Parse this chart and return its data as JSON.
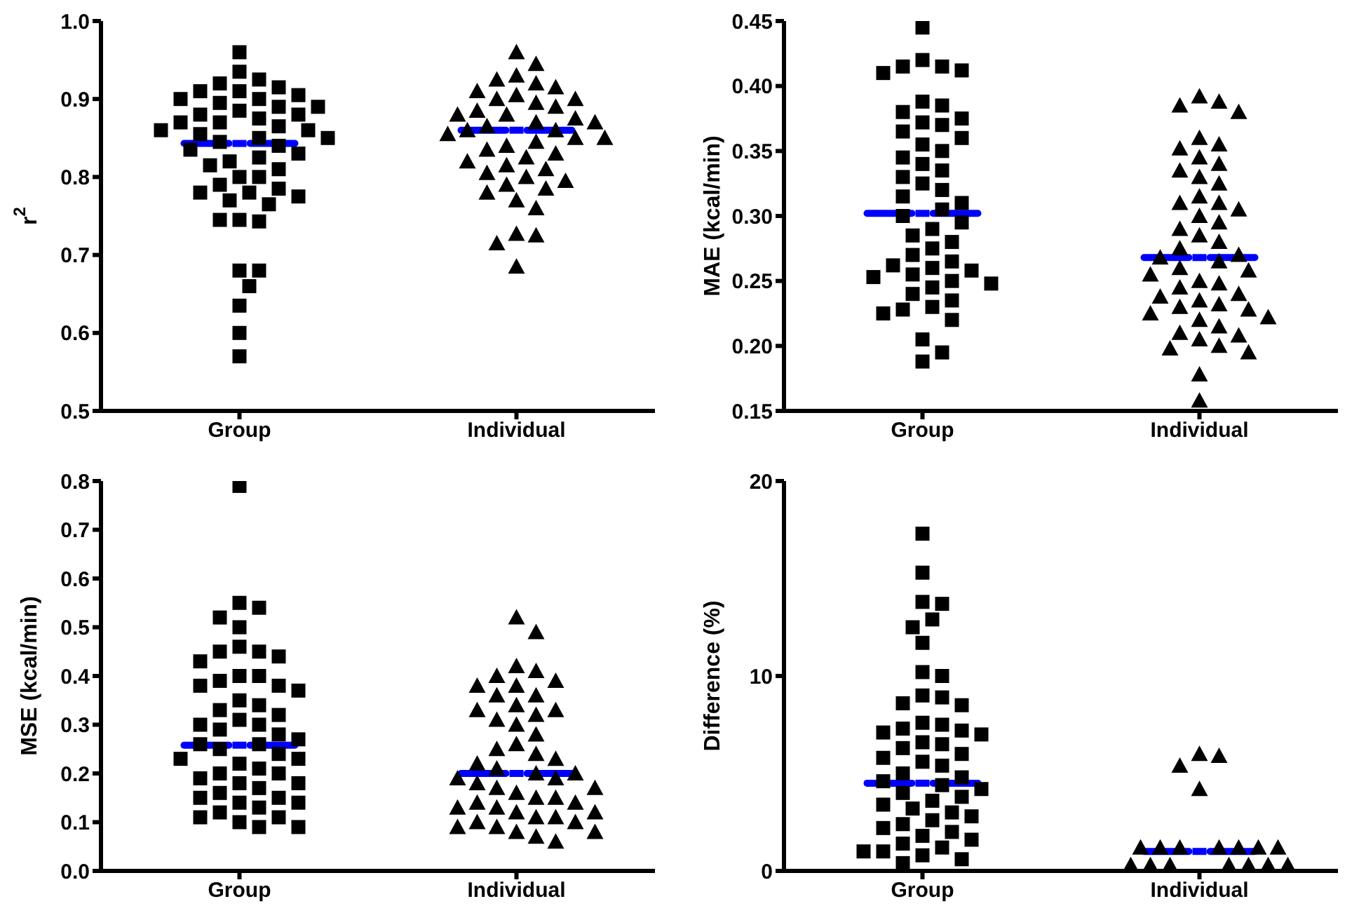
{
  "chart_data": [
    {
      "type": "scatter",
      "ylabel": "r$^{2}$",
      "categories": [
        "Group",
        "Individual"
      ],
      "ylim": [
        0.5,
        1.0
      ],
      "yticks": [
        0.5,
        0.6,
        0.7,
        0.8,
        0.9,
        {
          "value": 1.0,
          "label": "1.0"
        }
      ],
      "grid": false,
      "legend": false,
      "series": [
        {
          "marker": "square",
          "color": "#000000",
          "x": [
            "Group",
            "Group",
            "Group",
            "Group",
            "Group",
            "Group",
            "Group",
            "Group",
            "Group",
            "Group",
            "Group",
            "Group",
            "Group",
            "Group",
            "Group",
            "Group",
            "Group",
            "Group",
            "Group",
            "Group",
            "Group",
            "Group",
            "Group",
            "Group",
            "Group",
            "Group",
            "Group",
            "Group",
            "Group",
            "Group",
            "Group",
            "Group",
            "Group",
            "Group",
            "Group",
            "Group",
            "Group",
            "Group",
            "Group",
            "Group",
            "Group",
            "Group",
            "Group",
            "Group",
            "Group",
            "Group",
            "Group",
            "Group",
            "Group",
            "Group",
            "Group"
          ],
          "values": [
            0.96,
            0.935,
            0.925,
            0.92,
            0.915,
            0.91,
            0.91,
            0.905,
            0.9,
            0.9,
            0.895,
            0.89,
            0.89,
            0.885,
            0.88,
            0.88,
            0.875,
            0.87,
            0.87,
            0.865,
            0.86,
            0.86,
            0.855,
            0.85,
            0.85,
            0.845,
            0.84,
            0.835,
            0.83,
            0.825,
            0.82,
            0.815,
            0.81,
            0.8,
            0.8,
            0.79,
            0.785,
            0.78,
            0.78,
            0.775,
            0.77,
            0.765,
            0.745,
            0.743,
            0.745,
            0.68,
            0.68,
            0.66,
            0.635,
            0.6,
            0.57
          ]
        },
        {
          "marker": "triangle",
          "color": "#000000",
          "x": [
            "Individual",
            "Individual",
            "Individual",
            "Individual",
            "Individual",
            "Individual",
            "Individual",
            "Individual",
            "Individual",
            "Individual",
            "Individual",
            "Individual",
            "Individual",
            "Individual",
            "Individual",
            "Individual",
            "Individual",
            "Individual",
            "Individual",
            "Individual",
            "Individual",
            "Individual",
            "Individual",
            "Individual",
            "Individual",
            "Individual",
            "Individual",
            "Individual",
            "Individual",
            "Individual",
            "Individual",
            "Individual",
            "Individual",
            "Individual",
            "Individual",
            "Individual",
            "Individual",
            "Individual",
            "Individual",
            "Individual",
            "Individual",
            "Individual",
            "Individual",
            "Individual"
          ],
          "values": [
            0.96,
            0.945,
            0.93,
            0.925,
            0.92,
            0.915,
            0.91,
            0.905,
            0.9,
            0.9,
            0.895,
            0.89,
            0.885,
            0.88,
            0.88,
            0.875,
            0.87,
            0.87,
            0.865,
            0.86,
            0.86,
            0.855,
            0.85,
            0.85,
            0.845,
            0.84,
            0.835,
            0.83,
            0.825,
            0.82,
            0.815,
            0.81,
            0.805,
            0.8,
            0.795,
            0.79,
            0.785,
            0.78,
            0.77,
            0.76,
            0.727,
            0.725,
            0.715,
            0.685
          ]
        },
        {
          "color": "#0000ff",
          "x": [
            "Group",
            "Individual"
          ],
          "values": [
            0.843,
            0.86
          ]
        }
      ]
    },
    {
      "type": "scatter",
      "ylabel": "MAE (kcal/min)",
      "categories": [
        "Group",
        "Individual"
      ],
      "ylim": [
        0.15,
        0.45
      ],
      "yticks": [
        0.15,
        {
          "value": 0.2,
          "label": "0.20"
        },
        0.25,
        {
          "value": 0.3,
          "label": "0.30"
        },
        0.35,
        {
          "value": 0.4,
          "label": "0.40"
        },
        0.45
      ],
      "grid": false,
      "legend": false,
      "series": [
        {
          "marker": "square",
          "color": "#000000",
          "x": [
            "Group",
            "Group",
            "Group",
            "Group",
            "Group",
            "Group",
            "Group",
            "Group",
            "Group",
            "Group",
            "Group",
            "Group",
            "Group",
            "Group",
            "Group",
            "Group",
            "Group",
            "Group",
            "Group",
            "Group",
            "Group",
            "Group",
            "Group",
            "Group",
            "Group",
            "Group",
            "Group",
            "Group",
            "Group",
            "Group",
            "Group",
            "Group",
            "Group",
            "Group",
            "Group",
            "Group",
            "Group",
            "Group",
            "Group",
            "Group",
            "Group",
            "Group",
            "Group",
            "Group",
            "Group",
            "Group",
            "Group",
            "Group",
            "Group",
            "Group"
          ],
          "values": [
            0.445,
            0.42,
            0.415,
            0.415,
            0.412,
            0.41,
            0.388,
            0.385,
            0.38,
            0.375,
            0.372,
            0.37,
            0.365,
            0.36,
            0.355,
            0.35,
            0.345,
            0.34,
            0.335,
            0.33,
            0.325,
            0.32,
            0.315,
            0.31,
            0.305,
            0.3,
            0.295,
            0.29,
            0.285,
            0.28,
            0.275,
            0.27,
            0.265,
            0.262,
            0.26,
            0.258,
            0.255,
            0.253,
            0.25,
            0.248,
            0.245,
            0.24,
            0.235,
            0.23,
            0.228,
            0.225,
            0.22,
            0.205,
            0.195,
            0.188
          ]
        },
        {
          "marker": "triangle",
          "color": "#000000",
          "x": [
            "Individual",
            "Individual",
            "Individual",
            "Individual",
            "Individual",
            "Individual",
            "Individual",
            "Individual",
            "Individual",
            "Individual",
            "Individual",
            "Individual",
            "Individual",
            "Individual",
            "Individual",
            "Individual",
            "Individual",
            "Individual",
            "Individual",
            "Individual",
            "Individual",
            "Individual",
            "Individual",
            "Individual",
            "Individual",
            "Individual",
            "Individual",
            "Individual",
            "Individual",
            "Individual",
            "Individual",
            "Individual",
            "Individual",
            "Individual",
            "Individual",
            "Individual",
            "Individual",
            "Individual",
            "Individual",
            "Individual",
            "Individual",
            "Individual",
            "Individual",
            "Individual",
            "Individual",
            "Individual",
            "Individual",
            "Individual",
            "Individual"
          ],
          "values": [
            0.392,
            0.388,
            0.385,
            0.38,
            0.36,
            0.355,
            0.352,
            0.345,
            0.34,
            0.335,
            0.33,
            0.325,
            0.315,
            0.31,
            0.31,
            0.305,
            0.3,
            0.295,
            0.29,
            0.285,
            0.28,
            0.275,
            0.27,
            0.268,
            0.265,
            0.26,
            0.258,
            0.255,
            0.25,
            0.248,
            0.245,
            0.24,
            0.238,
            0.235,
            0.232,
            0.23,
            0.228,
            0.225,
            0.222,
            0.22,
            0.215,
            0.21,
            0.208,
            0.205,
            0.2,
            0.198,
            0.195,
            0.178,
            0.158
          ]
        },
        {
          "color": "#0000ff",
          "x": [
            "Group",
            "Individual"
          ],
          "values": [
            0.302,
            0.268
          ]
        }
      ]
    },
    {
      "type": "scatter",
      "ylabel": "MSE (kcal/min)",
      "categories": [
        "Group",
        "Individual"
      ],
      "ylim": [
        0.0,
        0.8
      ],
      "yticks": [
        {
          "value": 0,
          "label": "0.0"
        },
        0.1,
        0.2,
        0.3,
        0.4,
        0.5,
        0.6,
        0.7,
        0.8
      ],
      "grid": false,
      "legend": false,
      "series": [
        {
          "marker": "square",
          "color": "#000000",
          "x": [
            "Group",
            "Group",
            "Group",
            "Group",
            "Group",
            "Group",
            "Group",
            "Group",
            "Group",
            "Group",
            "Group",
            "Group",
            "Group",
            "Group",
            "Group",
            "Group",
            "Group",
            "Group",
            "Group",
            "Group",
            "Group",
            "Group",
            "Group",
            "Group",
            "Group",
            "Group",
            "Group",
            "Group",
            "Group",
            "Group",
            "Group",
            "Group",
            "Group",
            "Group",
            "Group",
            "Group",
            "Group",
            "Group",
            "Group",
            "Group",
            "Group",
            "Group",
            "Group",
            "Group",
            "Group",
            "Group",
            "Group",
            "Group",
            "Group",
            "Group",
            "Group",
            "Group"
          ],
          "values": [
            0.79,
            0.55,
            0.54,
            0.52,
            0.5,
            0.46,
            0.45,
            0.45,
            0.44,
            0.43,
            0.4,
            0.4,
            0.39,
            0.38,
            0.38,
            0.37,
            0.35,
            0.34,
            0.33,
            0.32,
            0.31,
            0.3,
            0.3,
            0.29,
            0.28,
            0.27,
            0.26,
            0.26,
            0.25,
            0.24,
            0.23,
            0.23,
            0.22,
            0.21,
            0.2,
            0.2,
            0.19,
            0.18,
            0.18,
            0.17,
            0.16,
            0.15,
            0.15,
            0.14,
            0.14,
            0.13,
            0.12,
            0.11,
            0.11,
            0.1,
            0.09,
            0.09
          ]
        },
        {
          "marker": "triangle",
          "color": "#000000",
          "x": [
            "Individual",
            "Individual",
            "Individual",
            "Individual",
            "Individual",
            "Individual",
            "Individual",
            "Individual",
            "Individual",
            "Individual",
            "Individual",
            "Individual",
            "Individual",
            "Individual",
            "Individual",
            "Individual",
            "Individual",
            "Individual",
            "Individual",
            "Individual",
            "Individual",
            "Individual",
            "Individual",
            "Individual",
            "Individual",
            "Individual",
            "Individual",
            "Individual",
            "Individual",
            "Individual",
            "Individual",
            "Individual",
            "Individual",
            "Individual",
            "Individual",
            "Individual",
            "Individual",
            "Individual",
            "Individual",
            "Individual",
            "Individual",
            "Individual",
            "Individual",
            "Individual",
            "Individual",
            "Individual",
            "Individual",
            "Individual",
            "Individual"
          ],
          "values": [
            0.52,
            0.49,
            0.42,
            0.41,
            0.4,
            0.39,
            0.38,
            0.38,
            0.36,
            0.36,
            0.34,
            0.33,
            0.33,
            0.32,
            0.31,
            0.3,
            0.28,
            0.26,
            0.25,
            0.24,
            0.23,
            0.22,
            0.21,
            0.2,
            0.2,
            0.19,
            0.19,
            0.18,
            0.17,
            0.17,
            0.16,
            0.15,
            0.15,
            0.14,
            0.14,
            0.13,
            0.13,
            0.12,
            0.12,
            0.11,
            0.11,
            0.1,
            0.1,
            0.09,
            0.09,
            0.08,
            0.08,
            0.07,
            0.06
          ]
        },
        {
          "color": "#0000ff",
          "x": [
            "Group",
            "Individual"
          ],
          "values": [
            0.258,
            0.2
          ]
        }
      ]
    },
    {
      "type": "scatter",
      "ylabel": "Difference (%)",
      "categories": [
        "Group",
        "Individual"
      ],
      "ylim": [
        0,
        20
      ],
      "yticks": [
        0,
        10,
        20
      ],
      "grid": false,
      "legend": false,
      "series": [
        {
          "marker": "square",
          "color": "#000000",
          "x": [
            "Group",
            "Group",
            "Group",
            "Group",
            "Group",
            "Group",
            "Group",
            "Group",
            "Group",
            "Group",
            "Group",
            "Group",
            "Group",
            "Group",
            "Group",
            "Group",
            "Group",
            "Group",
            "Group",
            "Group",
            "Group",
            "Group",
            "Group",
            "Group",
            "Group",
            "Group",
            "Group",
            "Group",
            "Group",
            "Group",
            "Group",
            "Group",
            "Group",
            "Group",
            "Group",
            "Group",
            "Group",
            "Group",
            "Group",
            "Group",
            "Group",
            "Group",
            "Group",
            "Group",
            "Group",
            "Group",
            "Group",
            "Group",
            "Group",
            "Group",
            "Group"
          ],
          "values": [
            17.3,
            15.3,
            13.8,
            13.7,
            12.9,
            12.5,
            11.7,
            10.2,
            10.0,
            9.0,
            8.9,
            8.6,
            8.5,
            7.6,
            7.5,
            7.3,
            7.2,
            7.1,
            7.0,
            6.6,
            6.5,
            6.3,
            6.0,
            5.8,
            5.6,
            5.4,
            5.0,
            4.8,
            4.6,
            4.4,
            4.2,
            4.0,
            3.8,
            3.6,
            3.4,
            3.2,
            3.0,
            2.8,
            2.6,
            2.4,
            2.2,
            2.0,
            1.8,
            1.6,
            1.4,
            1.2,
            1.0,
            1.0,
            0.8,
            0.6,
            0.4
          ]
        },
        {
          "marker": "triangle",
          "color": "#000000",
          "x": [
            "Individual",
            "Individual",
            "Individual",
            "Individual",
            "Individual",
            "Individual",
            "Individual",
            "Individual",
            "Individual",
            "Individual",
            "Individual",
            "Individual",
            "Individual",
            "Individual",
            "Individual",
            "Individual",
            "Individual",
            "Individual"
          ],
          "values": [
            6.0,
            5.9,
            5.4,
            4.2,
            1.2,
            1.2,
            1.2,
            1.2,
            1.2,
            1.2,
            1.2,
            0.3,
            0.3,
            0.3,
            0.3,
            0.3,
            0.3,
            0.3
          ]
        },
        {
          "color": "#0000ff",
          "x": [
            "Group",
            "Individual"
          ],
          "values": [
            4.5,
            1.0
          ]
        }
      ]
    }
  ]
}
